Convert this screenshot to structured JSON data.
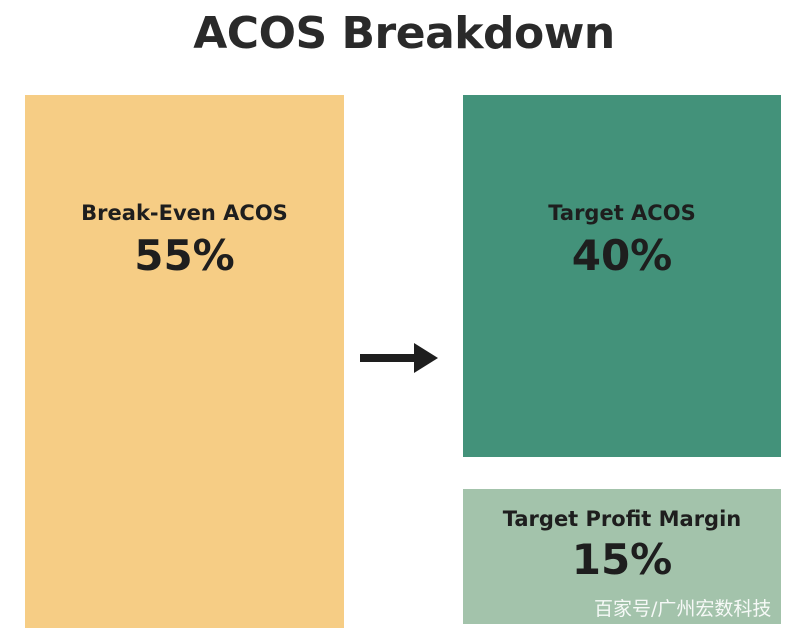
{
  "title": "ACOS Breakdown",
  "colors": {
    "break_even": "#f6cd85",
    "target_acos": "#43927a",
    "target_profit_margin": "#a3c3ab",
    "arrow": "#1e1e1e"
  },
  "boxes": {
    "break_even": {
      "label": "Break-Even ACOS",
      "value": "55%"
    },
    "target_acos": {
      "label": "Target ACOS",
      "value": "40%"
    },
    "target_profit_margin": {
      "label": "Target Profit Margin",
      "value": "15%"
    }
  },
  "arrow_icon": "right-arrow-icon",
  "watermark": "百家号/广州宏数科技"
}
